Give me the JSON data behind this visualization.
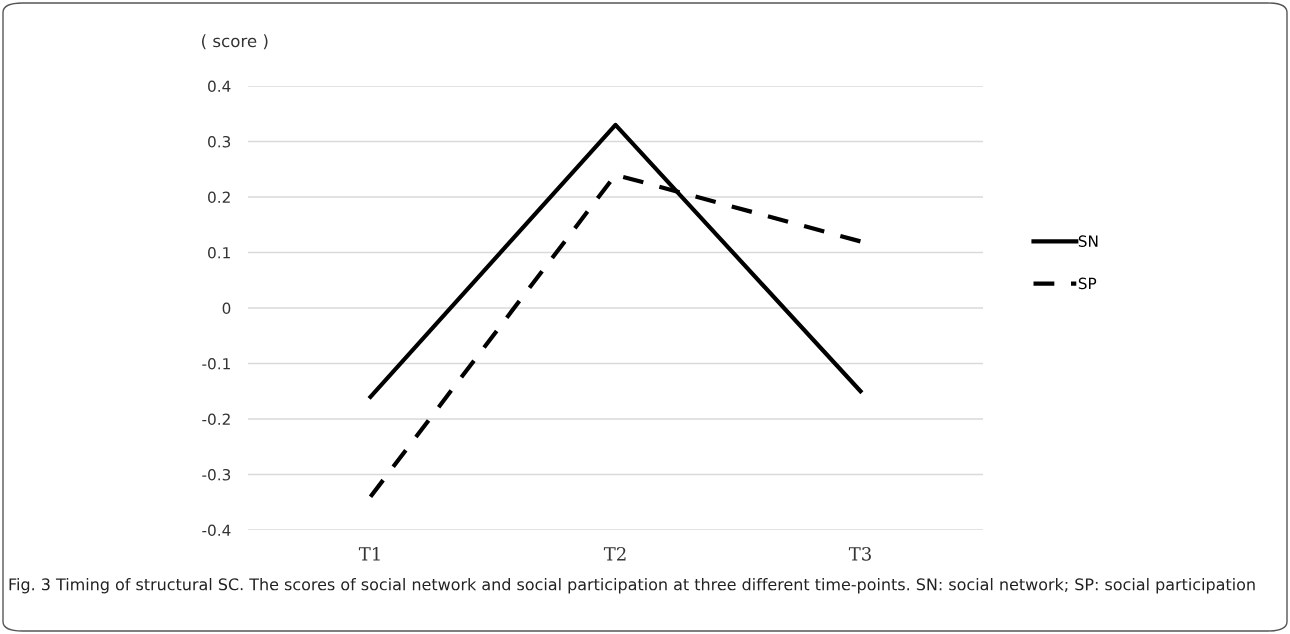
{
  "chart_data": {
    "type": "line",
    "ylabel": "( score )",
    "categories": [
      "T1",
      "T2",
      "T3"
    ],
    "series": [
      {
        "name": "SN",
        "color": "#000000",
        "values": [
          -0.16,
          0.33,
          -0.15
        ],
        "line_style": "solid"
      },
      {
        "name": "SP",
        "color": "#000000",
        "values": [
          -0.34,
          0.24,
          0.12
        ],
        "line_style": "dashed"
      }
    ],
    "ylim": [
      -0.4,
      0.4
    ],
    "yticks": [
      {
        "value": 0.4,
        "label": "0.4"
      },
      {
        "value": 0.3,
        "label": "0.3"
      },
      {
        "value": 0.2,
        "label": "0.2"
      },
      {
        "value": 0.1,
        "label": "0.1"
      },
      {
        "value": 0,
        "label": "0"
      },
      {
        "value": -0.1,
        "label": "-0.1"
      },
      {
        "value": -0.2,
        "label": "-0.2"
      },
      {
        "value": -0.3,
        "label": "-0.3"
      },
      {
        "value": -0.4,
        "label": "-0.4"
      }
    ],
    "grid": "y",
    "legend": "right",
    "marker": "none",
    "annotations": [
      "Fig. 3 Timing of structural SC. The scores of social network and social participation at three different time-points. SN: social network; SP: social participation"
    ]
  }
}
